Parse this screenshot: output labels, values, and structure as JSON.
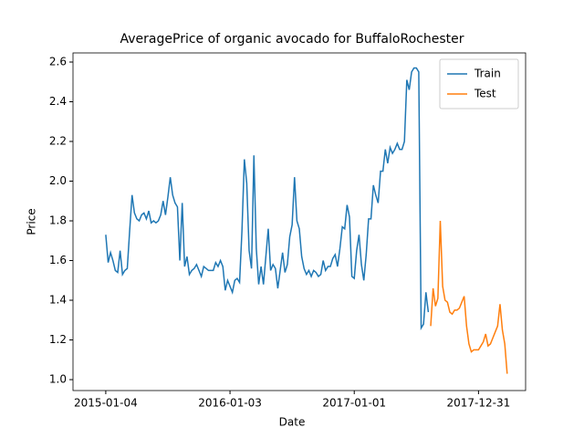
{
  "chart_data": {
    "type": "line",
    "title": "AveragePrice of organic avocado for BuffaloRochester",
    "x_label": "Date",
    "y_label": "Price",
    "x": [
      "2015-01-04",
      "2015-01-11",
      "2015-01-18",
      "2015-01-25",
      "2015-02-01",
      "2015-02-08",
      "2015-02-15",
      "2015-02-22",
      "2015-03-01",
      "2015-03-08",
      "2015-03-15",
      "2015-03-22",
      "2015-03-29",
      "2015-04-05",
      "2015-04-12",
      "2015-04-19",
      "2015-04-26",
      "2015-05-03",
      "2015-05-10",
      "2015-05-17",
      "2015-05-24",
      "2015-05-31",
      "2015-06-07",
      "2015-06-14",
      "2015-06-21",
      "2015-06-28",
      "2015-07-05",
      "2015-07-12",
      "2015-07-19",
      "2015-07-26",
      "2015-08-02",
      "2015-08-09",
      "2015-08-16",
      "2015-08-23",
      "2015-08-30",
      "2015-09-06",
      "2015-09-13",
      "2015-09-20",
      "2015-09-27",
      "2015-10-04",
      "2015-10-11",
      "2015-10-18",
      "2015-10-25",
      "2015-11-01",
      "2015-11-08",
      "2015-11-15",
      "2015-11-22",
      "2015-11-29",
      "2015-12-06",
      "2015-12-13",
      "2015-12-20",
      "2015-12-27",
      "2016-01-03",
      "2016-01-10",
      "2016-01-17",
      "2016-01-24",
      "2016-01-31",
      "2016-02-07",
      "2016-02-14",
      "2016-02-21",
      "2016-02-28",
      "2016-03-06",
      "2016-03-13",
      "2016-03-20",
      "2016-03-27",
      "2016-04-03",
      "2016-04-10",
      "2016-04-17",
      "2016-04-24",
      "2016-05-01",
      "2016-05-08",
      "2016-05-15",
      "2016-05-22",
      "2016-05-29",
      "2016-06-05",
      "2016-06-12",
      "2016-06-19",
      "2016-06-26",
      "2016-07-03",
      "2016-07-10",
      "2016-07-17",
      "2016-07-24",
      "2016-07-31",
      "2016-08-07",
      "2016-08-14",
      "2016-08-21",
      "2016-08-28",
      "2016-09-04",
      "2016-09-11",
      "2016-09-18",
      "2016-09-25",
      "2016-10-02",
      "2016-10-09",
      "2016-10-16",
      "2016-10-23",
      "2016-10-30",
      "2016-11-06",
      "2016-11-13",
      "2016-11-20",
      "2016-11-27",
      "2016-12-04",
      "2016-12-11",
      "2016-12-18",
      "2016-12-25",
      "2017-01-01",
      "2017-01-08",
      "2017-01-15",
      "2017-01-22",
      "2017-01-29",
      "2017-02-05",
      "2017-02-12",
      "2017-02-19",
      "2017-02-26",
      "2017-03-05",
      "2017-03-12",
      "2017-03-19",
      "2017-03-26",
      "2017-04-02",
      "2017-04-09",
      "2017-04-16",
      "2017-04-23",
      "2017-04-30",
      "2017-05-07",
      "2017-05-14",
      "2017-05-21",
      "2017-05-28",
      "2017-06-04",
      "2017-06-11",
      "2017-06-18",
      "2017-06-25",
      "2017-07-02",
      "2017-07-09",
      "2017-07-16",
      "2017-07-23",
      "2017-07-30",
      "2017-08-06",
      "2017-08-13",
      "2017-08-20",
      "2017-08-27",
      "2017-09-03",
      "2017-09-10",
      "2017-09-17",
      "2017-09-24",
      "2017-10-01",
      "2017-10-08",
      "2017-10-15",
      "2017-10-22",
      "2017-10-29",
      "2017-11-05",
      "2017-11-12",
      "2017-11-19",
      "2017-11-26",
      "2017-12-03",
      "2017-12-10",
      "2017-12-17",
      "2017-12-24",
      "2017-12-31",
      "2018-01-07",
      "2018-01-14",
      "2018-01-21",
      "2018-01-28",
      "2018-02-04",
      "2018-02-11",
      "2018-02-18",
      "2018-02-25",
      "2018-03-04",
      "2018-03-11",
      "2018-03-18",
      "2018-03-25"
    ],
    "series": [
      {
        "name": "Train",
        "color": "#1f77b4",
        "values": [
          1.73,
          1.59,
          1.64,
          1.6,
          1.55,
          1.54,
          1.65,
          1.53,
          1.55,
          1.56,
          1.75,
          1.93,
          1.84,
          1.81,
          1.8,
          1.83,
          1.84,
          1.81,
          1.85,
          1.79,
          1.8,
          1.79,
          1.8,
          1.83,
          1.9,
          1.83,
          1.92,
          2.02,
          1.93,
          1.89,
          1.87,
          1.6,
          1.89,
          1.57,
          1.62,
          1.53,
          1.55,
          1.56,
          1.58,
          1.55,
          1.52,
          1.57,
          1.56,
          1.55,
          1.55,
          1.55,
          1.59,
          1.57,
          1.6,
          1.57,
          1.45,
          1.5,
          1.47,
          1.44,
          1.5,
          1.51,
          1.49,
          1.75,
          2.11,
          1.99,
          1.65,
          1.56,
          2.13,
          1.66,
          1.48,
          1.57,
          1.48,
          1.62,
          1.76,
          1.55,
          1.58,
          1.56,
          1.46,
          1.55,
          1.64,
          1.54,
          1.58,
          1.72,
          1.78,
          2.02,
          1.8,
          1.76,
          1.62,
          1.56,
          1.53,
          1.55,
          1.52,
          1.55,
          1.54,
          1.52,
          1.53,
          1.6,
          1.55,
          1.57,
          1.57,
          1.61,
          1.63,
          1.57,
          1.66,
          1.77,
          1.76,
          1.88,
          1.82,
          1.52,
          1.51,
          1.65,
          1.73,
          1.58,
          1.5,
          1.63,
          1.81,
          1.81,
          1.98,
          1.93,
          1.89,
          2.05,
          2.05,
          2.16,
          2.09,
          2.17,
          2.14,
          2.16,
          2.19,
          2.16,
          2.16,
          2.2,
          2.51,
          2.46,
          2.55,
          2.57,
          2.57,
          2.55,
          1.26,
          1.28,
          1.44,
          1.34,
          null,
          null,
          null,
          null,
          null,
          null,
          null,
          null,
          null,
          null,
          null,
          null,
          null,
          null,
          null,
          null,
          null,
          null,
          null,
          null,
          null,
          null,
          null,
          null,
          null,
          null,
          null,
          null,
          null,
          null,
          null,
          null,
          null
        ]
      },
      {
        "name": "Test",
        "color": "#ff7f0e",
        "values": [
          null,
          null,
          null,
          null,
          null,
          null,
          null,
          null,
          null,
          null,
          null,
          null,
          null,
          null,
          null,
          null,
          null,
          null,
          null,
          null,
          null,
          null,
          null,
          null,
          null,
          null,
          null,
          null,
          null,
          null,
          null,
          null,
          null,
          null,
          null,
          null,
          null,
          null,
          null,
          null,
          null,
          null,
          null,
          null,
          null,
          null,
          null,
          null,
          null,
          null,
          null,
          null,
          null,
          null,
          null,
          null,
          null,
          null,
          null,
          null,
          null,
          null,
          null,
          null,
          null,
          null,
          null,
          null,
          null,
          null,
          null,
          null,
          null,
          null,
          null,
          null,
          null,
          null,
          null,
          null,
          null,
          null,
          null,
          null,
          null,
          null,
          null,
          null,
          null,
          null,
          null,
          null,
          null,
          null,
          null,
          null,
          null,
          null,
          null,
          null,
          null,
          null,
          null,
          null,
          null,
          null,
          null,
          null,
          null,
          null,
          null,
          null,
          null,
          null,
          null,
          null,
          null,
          null,
          null,
          null,
          null,
          null,
          null,
          null,
          null,
          null,
          null,
          null,
          null,
          null,
          null,
          null,
          null,
          null,
          null,
          null,
          1.27,
          1.46,
          1.37,
          1.41,
          1.8,
          1.47,
          1.4,
          1.39,
          1.34,
          1.33,
          1.35,
          1.35,
          1.36,
          1.39,
          1.42,
          1.27,
          1.18,
          1.14,
          1.15,
          1.15,
          1.15,
          1.17,
          1.19,
          1.23,
          1.17,
          1.18,
          1.21,
          1.24,
          1.27,
          1.38,
          1.25,
          1.18,
          1.03
        ]
      }
    ],
    "xlim": [
      "2014-09-30",
      "2018-05-18"
    ],
    "xticks": [
      "2015-01-04",
      "2016-01-03",
      "2017-01-01",
      "2017-12-31"
    ],
    "ylim": [
      0.945,
      2.646
    ],
    "yticks": [
      {
        "value": 1.0,
        "label": "1.0"
      },
      {
        "value": 1.2,
        "label": "1.2"
      },
      {
        "value": 1.4,
        "label": "1.4"
      },
      {
        "value": 1.6,
        "label": "1.6"
      },
      {
        "value": 1.8,
        "label": "1.8"
      },
      {
        "value": 2.0,
        "label": "2.0"
      },
      {
        "value": 2.2,
        "label": "2.2"
      },
      {
        "value": 2.4,
        "label": "2.4"
      },
      {
        "value": 2.6,
        "label": "2.6"
      }
    ],
    "legend": "upper right",
    "grid": false
  }
}
